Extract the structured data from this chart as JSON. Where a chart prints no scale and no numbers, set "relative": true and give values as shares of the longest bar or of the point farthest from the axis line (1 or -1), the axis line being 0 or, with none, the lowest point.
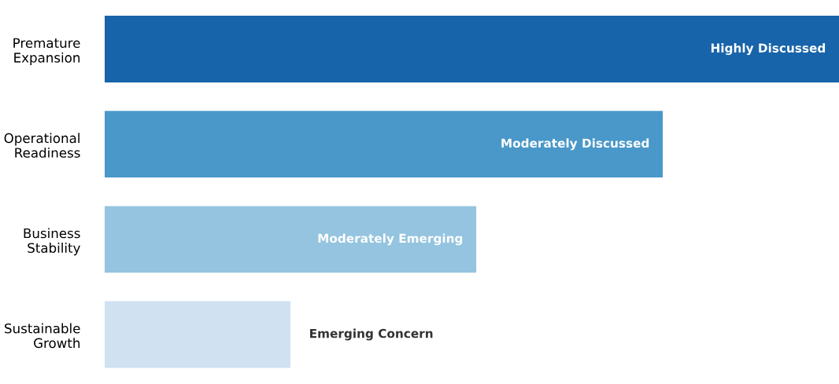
{
  "chart_data": {
    "type": "bar",
    "orientation": "horizontal",
    "relative": true,
    "categories": [
      "Premature\nExpansion",
      "Operational\nReadiness",
      "Business\nStability",
      "Sustainable\nGrowth"
    ],
    "values": [
      1,
      0.76,
      0.506,
      0.253
    ],
    "colors": [
      "#1764ab",
      "#4a98c9",
      "#94c4df",
      "#d0e1f2"
    ],
    "annotations": [
      "Highly Discussed",
      "Moderately Discussed",
      "Moderately Emerging",
      "Emerging Concern"
    ],
    "grid": false,
    "legend": false
  }
}
